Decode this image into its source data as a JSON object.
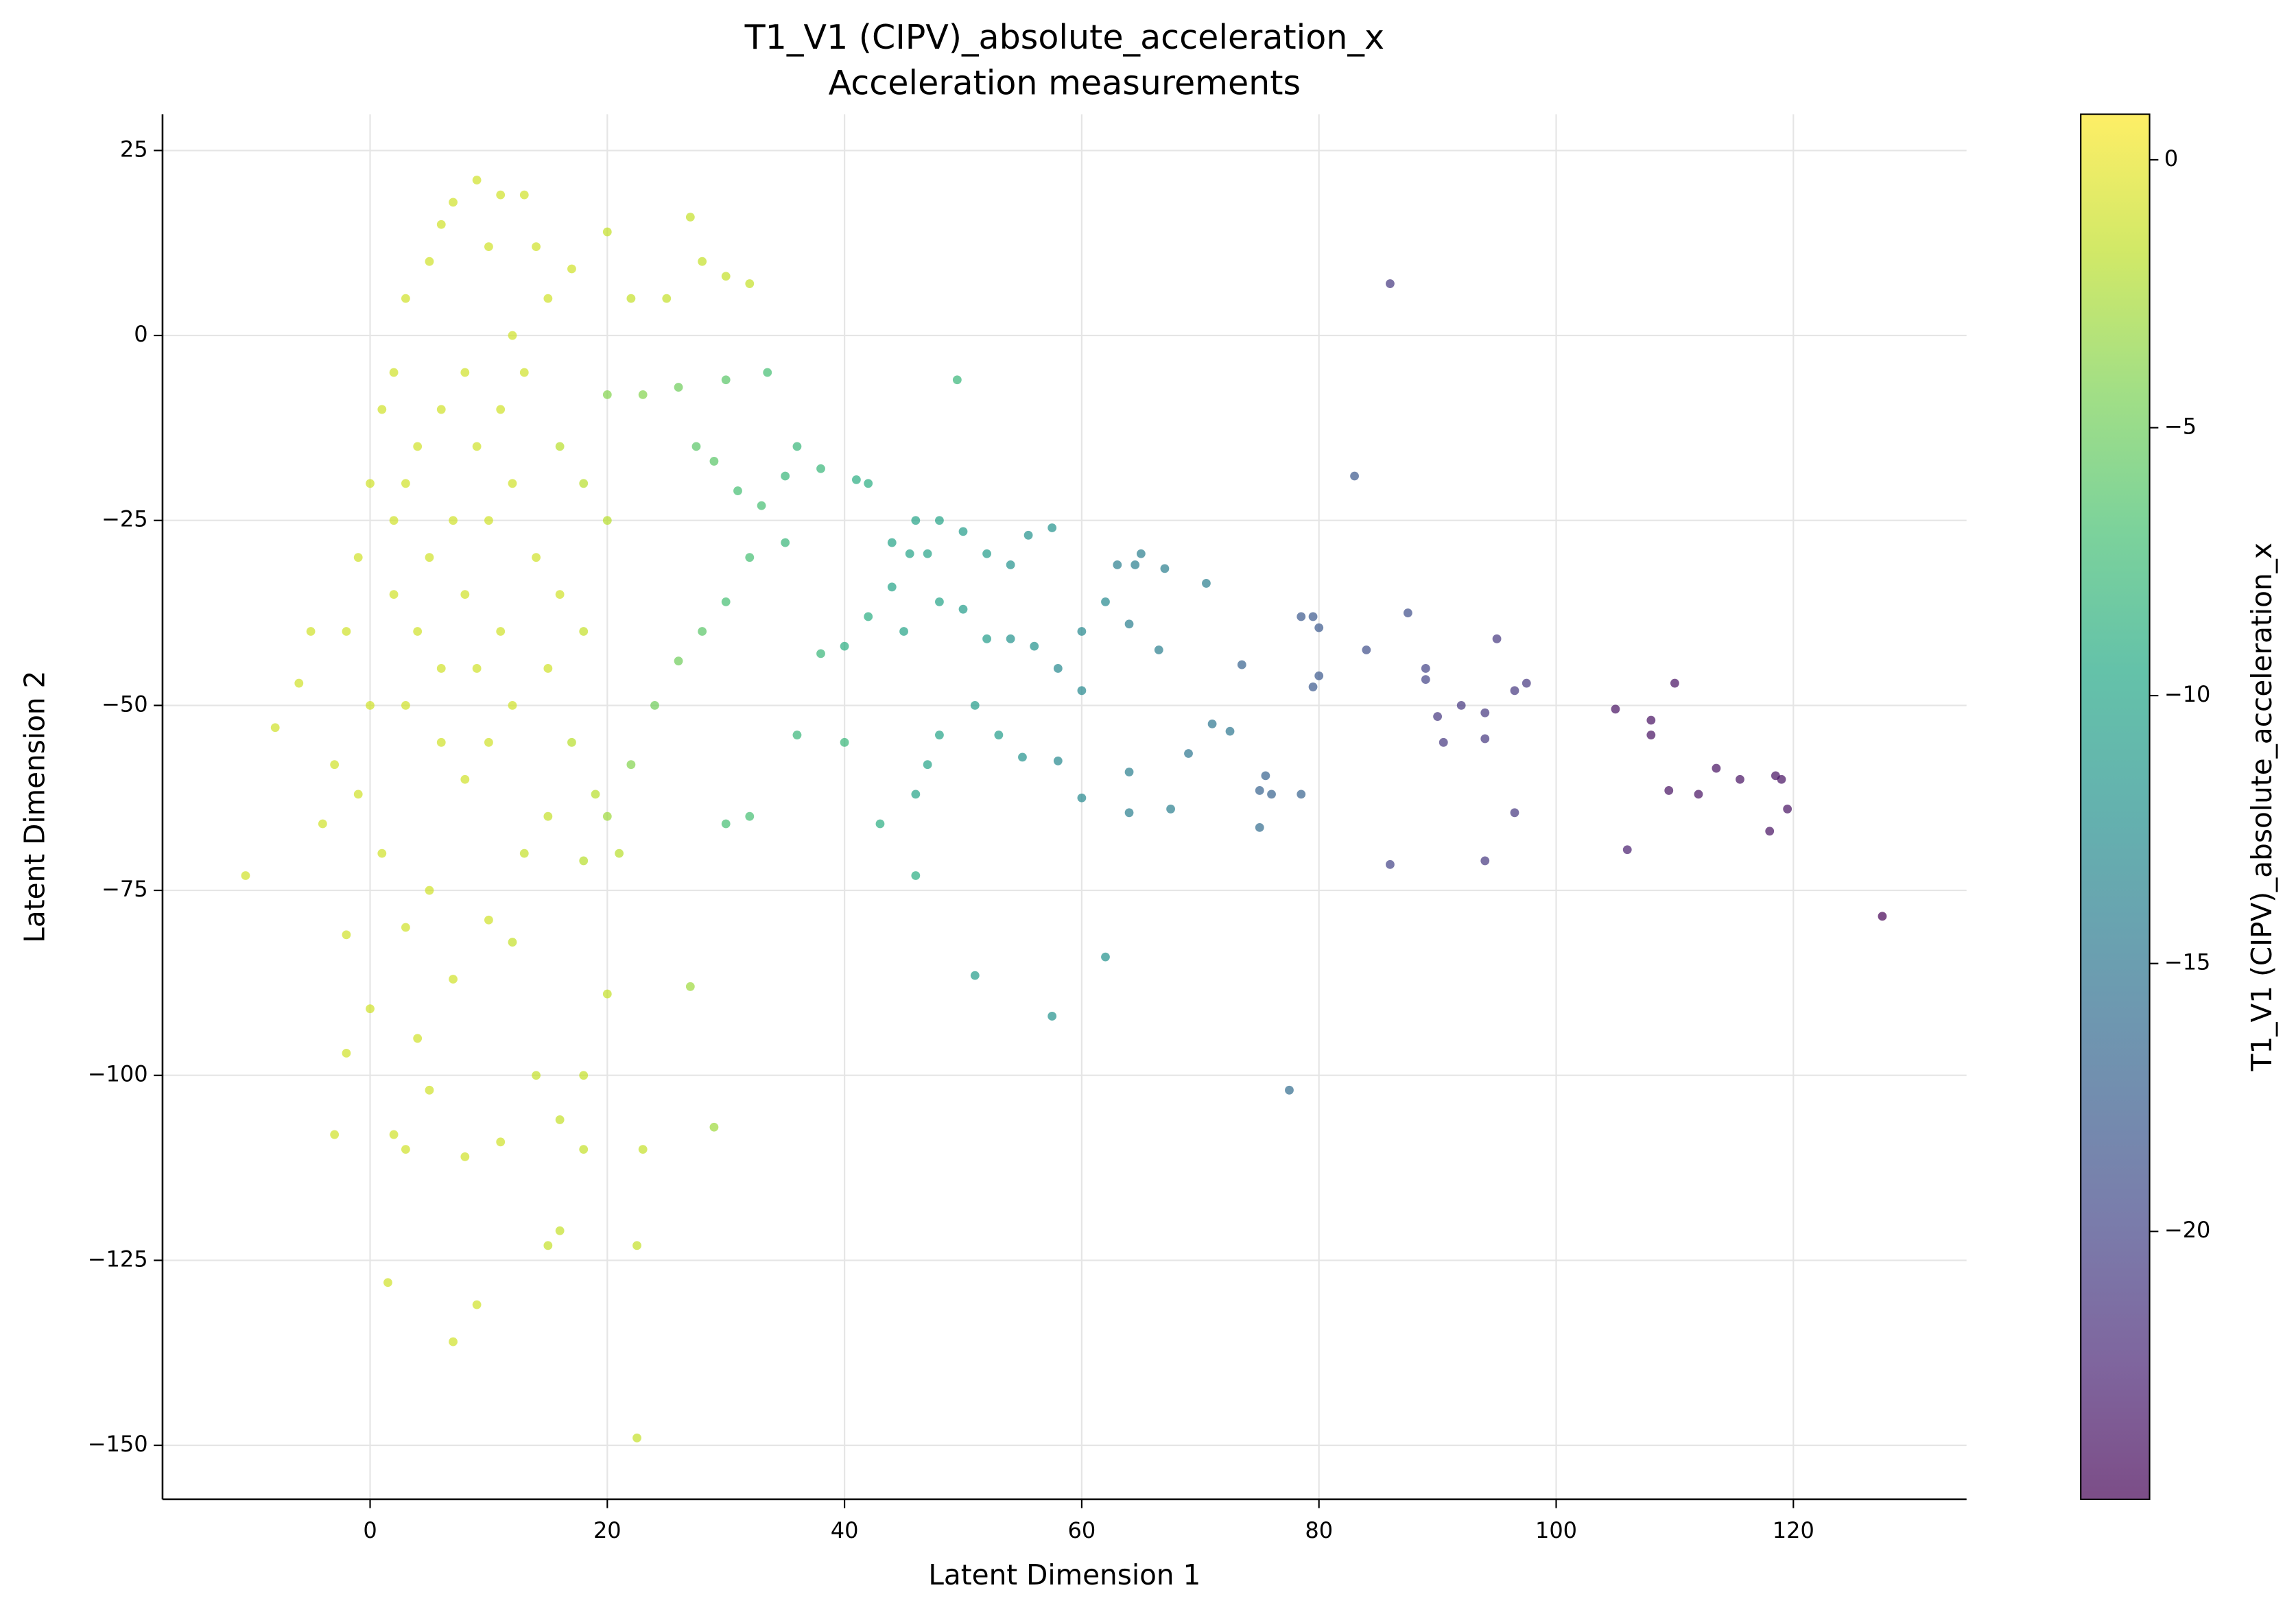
{
  "chart_data": {
    "type": "scatter",
    "title": "T1_V1 (CIPV)_absolute_acceleration_x",
    "subtitle": "Acceleration measurements",
    "x_label": "Latent Dimension 1",
    "y_label": "Latent Dimension 2",
    "colorbar_label": "T1_V1 (CIPV)_absolute_acceleration_x",
    "colormap": "viridis",
    "alpha": 0.7,
    "grid": true,
    "xlim": [
      -17.5,
      134.6
    ],
    "ylim": [
      -157.3,
      29.9
    ],
    "clim": [
      -25,
      0.85
    ],
    "xticks": [
      0,
      20,
      40,
      60,
      80,
      100,
      120
    ],
    "yticks": [
      {
        "value": -150,
        "label": "−150"
      },
      {
        "value": -125,
        "label": "−125"
      },
      {
        "value": -100,
        "label": "−100"
      },
      {
        "value": -75,
        "label": "−75"
      },
      {
        "value": -50,
        "label": "−50"
      },
      {
        "value": -25,
        "label": "−25"
      },
      0,
      25
    ],
    "cticks": [
      {
        "value": -20,
        "label": "−20"
      },
      {
        "value": -15,
        "label": "−15"
      },
      {
        "value": -10,
        "label": "−10"
      },
      {
        "value": -5,
        "label": "−5"
      },
      0
    ],
    "x": [
      86,
      83,
      127.5,
      77.5,
      49.5,
      33.5,
      51,
      62,
      57.5,
      105,
      110,
      108,
      108,
      113.5,
      115.5,
      119,
      118.5,
      119.5,
      118,
      112,
      109.5,
      106,
      96.5,
      94,
      86,
      95,
      97.5,
      96.5,
      94,
      94,
      92,
      90,
      90.5,
      89,
      89,
      87.5,
      84,
      80,
      79.5,
      78.5,
      80,
      79.5,
      78.5,
      75.5,
      75,
      76,
      75,
      73.5,
      72.5,
      71,
      70.5,
      69,
      67.5,
      66.5,
      65,
      64.5,
      63,
      67,
      64,
      64,
      64,
      60,
      58,
      57.5,
      55.5,
      54,
      52,
      50,
      48,
      46,
      47,
      45.5,
      44,
      42,
      41,
      38,
      36,
      35,
      33,
      31,
      29,
      27.5,
      26,
      23,
      20,
      30,
      46,
      43,
      40,
      36,
      32,
      30,
      29,
      27,
      60,
      58,
      56,
      54,
      52,
      50,
      48,
      45,
      44,
      42,
      40,
      38,
      35,
      32,
      30,
      28,
      26,
      24,
      22,
      20,
      18,
      62,
      60,
      53,
      51,
      47,
      46,
      48,
      55,
      -10.5,
      -8,
      -6,
      -5,
      -4,
      -3,
      -2,
      -3,
      -2,
      0,
      1.5,
      2,
      3,
      4,
      5,
      7,
      9,
      8,
      11,
      15,
      16,
      18,
      22.5,
      22.5,
      23,
      20,
      18,
      16,
      14,
      12,
      10,
      7,
      5,
      3,
      1,
      -1,
      0,
      -2,
      -1,
      0,
      1,
      2,
      3,
      5,
      6,
      7,
      9,
      11,
      13,
      10,
      14,
      17,
      20,
      22,
      25,
      27,
      28,
      30,
      32,
      15,
      12,
      8,
      6,
      4,
      3,
      2,
      5,
      8,
      10,
      12,
      14,
      16,
      18,
      15,
      12,
      10,
      8,
      6,
      4,
      2,
      7,
      9,
      11,
      13,
      16,
      18,
      20,
      17,
      19,
      21,
      15,
      13,
      11,
      9,
      6,
      3
    ],
    "y": [
      7,
      -19,
      -78.5,
      -102,
      -6,
      -5,
      -86.5,
      -84,
      -92,
      -50.5,
      -47,
      -52,
      -54,
      -58.5,
      -60,
      -60,
      -59.5,
      -64,
      -67,
      -62,
      -61.5,
      -69.5,
      -64.5,
      -71,
      -71.5,
      -41,
      -47,
      -48,
      -51,
      -54.5,
      -50,
      -51.5,
      -55,
      -45,
      -46.5,
      -37.5,
      -42.5,
      -39.5,
      -38,
      -38,
      -46,
      -47.5,
      -62,
      -59.5,
      -61.5,
      -62,
      -66.5,
      -44.5,
      -53.5,
      -52.5,
      -33.5,
      -56.5,
      -64,
      -42.5,
      -29.5,
      -31,
      -31,
      -31.5,
      -39,
      -64.5,
      -59,
      -62.5,
      -57.5,
      -26,
      -27,
      -31,
      -29.5,
      -26.5,
      -25,
      -25,
      -29.5,
      -29.5,
      -28,
      -20,
      -19.5,
      -18,
      -15,
      -19,
      -23,
      -21,
      -17,
      -15,
      -7,
      -8,
      -8,
      -6,
      -73,
      -66,
      -55,
      -54,
      -65,
      -66,
      -107,
      -88,
      -48,
      -45,
      -42,
      -41,
      -41,
      -37,
      -36,
      -40,
      -34,
      -38,
      -42,
      -43,
      -28,
      -30,
      -36,
      -40,
      -44,
      -50,
      -58,
      -65,
      -71,
      -36,
      -40,
      -54,
      -50,
      -58,
      -62,
      -54,
      -57,
      -73,
      -53,
      -47,
      -40,
      -66,
      -58,
      -97,
      -108,
      -81,
      -91,
      -128,
      -108,
      -110,
      -95,
      -102,
      -136,
      -131,
      -111,
      -109,
      -123,
      -121,
      -110,
      -123,
      -149,
      -110,
      -89,
      -100,
      -106,
      -100,
      -82,
      -79,
      -87,
      -75,
      -80,
      -70,
      -62,
      -50,
      -40,
      -30,
      -20,
      -10,
      -5,
      5,
      10,
      15,
      18,
      21,
      19,
      19,
      12,
      12,
      9,
      14,
      5,
      5,
      16,
      10,
      8,
      7,
      5,
      0,
      -5,
      -10,
      -15,
      -20,
      -25,
      -30,
      -35,
      -25,
      -20,
      -30,
      -35,
      -40,
      -45,
      -50,
      -55,
      -60,
      -45,
      -40,
      -35,
      -25,
      -15,
      -10,
      -5,
      -15,
      -20,
      -25,
      -55,
      -62,
      -70,
      -65,
      -70,
      -40,
      -45,
      -55,
      -50
    ],
    "c": [
      -21,
      -18,
      -25,
      -16,
      -8,
      -7,
      -11,
      -12,
      -12,
      -24,
      -24,
      -24,
      -24,
      -24,
      -24,
      -24,
      -24,
      -24,
      -24,
      -24,
      -24,
      -23,
      -21,
      -21,
      -20,
      -21,
      -21,
      -21,
      -21,
      -21,
      -21,
      -21,
      -21,
      -20,
      -20,
      -19,
      -19,
      -18,
      -18,
      -18,
      -18,
      -18,
      -17,
      -17,
      -17,
      -17,
      -16,
      -17,
      -15,
      -15,
      -14,
      -15,
      -14,
      -14,
      -14,
      -14,
      -14,
      -14,
      -14,
      -14,
      -14,
      -13,
      -13,
      -12,
      -12,
      -12,
      -11,
      -11,
      -10,
      -10,
      -10,
      -10,
      -10,
      -9,
      -9,
      -8,
      -8,
      -8,
      -7,
      -7,
      -6,
      -6,
      -5,
      -4,
      -4,
      -6,
      -9,
      -9,
      -8,
      -8,
      -7,
      -7,
      -3,
      -3,
      -13,
      -13,
      -12,
      -12,
      -11,
      -11,
      -10,
      -10,
      -10,
      -9,
      -9,
      -8,
      -8,
      -7,
      -7,
      -6,
      -5,
      -5,
      -4,
      -3,
      -2,
      -13,
      -13,
      -11,
      -11,
      -10,
      -10,
      -10,
      -12,
      -1,
      -1,
      -1,
      -1,
      -1,
      -1,
      -1,
      -1,
      -1,
      -1,
      -1,
      -1,
      -1,
      -1,
      -1,
      -1,
      -1,
      -1,
      -1,
      -1.5,
      -1.5,
      -1.5,
      -1.5,
      -1.5,
      -1.5,
      -1.5,
      -1.5,
      -1.5,
      -1.5,
      -1.5,
      -1,
      -1,
      -1,
      -1,
      -1,
      -1,
      -1,
      -1,
      -1,
      -1,
      -1,
      -1,
      -1,
      -1,
      -1,
      -1,
      -1,
      -1,
      -1,
      -1,
      -1,
      -1,
      -1.5,
      -1.5,
      -1.5,
      -1.5,
      -1.5,
      -1.5,
      -1.5,
      -1,
      -1,
      -1,
      -1,
      -1,
      -1,
      -1,
      -1,
      -1,
      -1,
      -1,
      -1,
      -1,
      -1.5,
      -1,
      -1,
      -1,
      -1,
      -1,
      -1,
      -1,
      -1,
      -1,
      -1,
      -1,
      -2,
      -2,
      -2,
      -2,
      -2,
      -2,
      -1.5,
      -1.5,
      -1,
      -1,
      -1,
      -1
    ]
  }
}
